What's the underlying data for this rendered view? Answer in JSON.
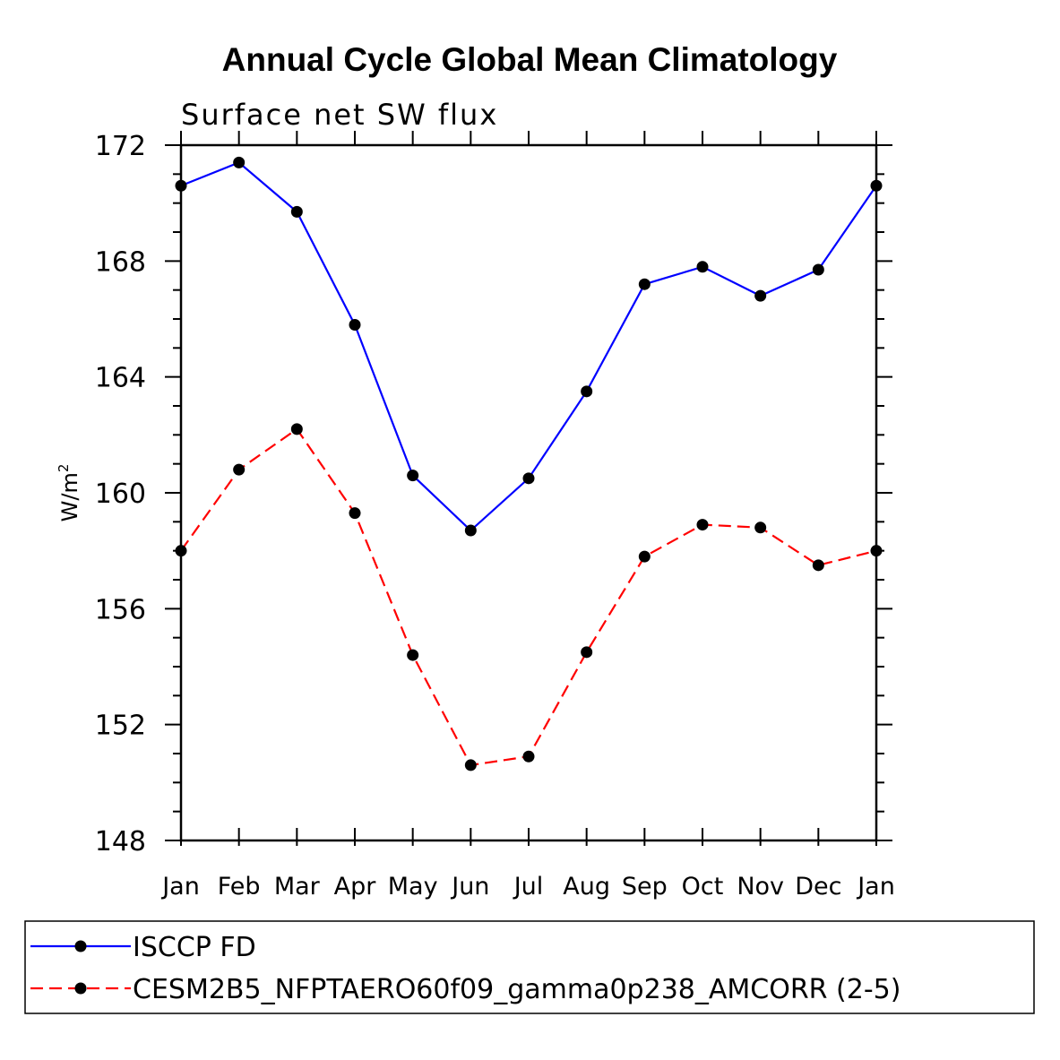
{
  "chart_data": {
    "type": "line",
    "title": "Annual Cycle Global Mean Climatology",
    "subtitle": "Surface net SW flux",
    "ylabel": "W/m",
    "ylabel_superscript": "2",
    "xlabel": "",
    "categories": [
      "Jan",
      "Feb",
      "Mar",
      "Apr",
      "May",
      "Jun",
      "Jul",
      "Aug",
      "Sep",
      "Oct",
      "Nov",
      "Dec",
      "Jan"
    ],
    "ylim": [
      148,
      172
    ],
    "yticks": [
      "148",
      "152",
      "156",
      "160",
      "164",
      "168",
      "172"
    ],
    "grid": false,
    "legend_position": "bottom",
    "series": [
      {
        "name": "ISCCP FD",
        "color": "#0000ff",
        "dash": "solid",
        "values": [
          170.6,
          171.4,
          169.7,
          165.8,
          160.6,
          158.7,
          160.5,
          163.5,
          167.2,
          167.8,
          166.8,
          167.7,
          170.6
        ]
      },
      {
        "name": "CESM2B5_NFPTAERO60f09_gamma0p238_AMCORR (2-5)",
        "color": "#ff0000",
        "dash": "dashed",
        "values": [
          158.0,
          160.8,
          162.2,
          159.3,
          154.4,
          150.6,
          150.9,
          154.5,
          157.8,
          158.9,
          158.8,
          157.5,
          158.0
        ]
      }
    ]
  }
}
